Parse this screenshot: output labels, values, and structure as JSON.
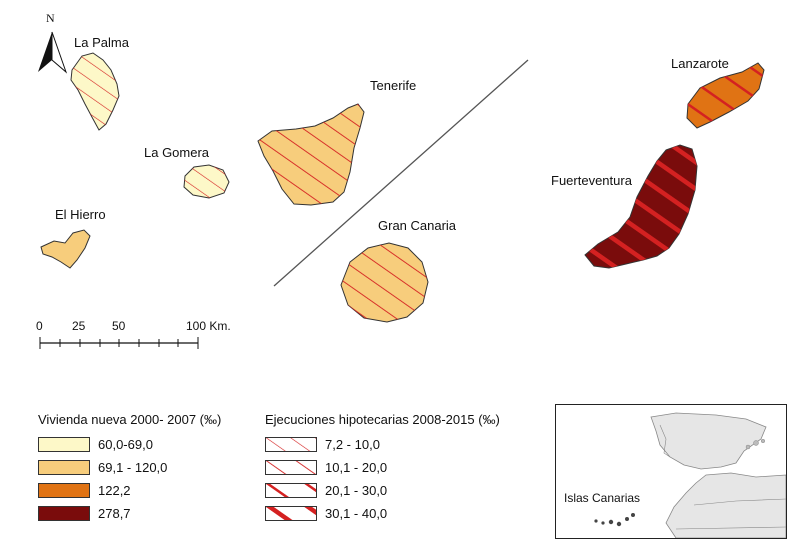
{
  "map": {
    "north_label": "N",
    "islands": {
      "la_palma": "La Palma",
      "la_gomera": "La Gomera",
      "el_hierro": "El Hierro",
      "tenerife": "Tenerife",
      "gran_canaria": "Gran Canaria",
      "lanzarote": "Lanzarote",
      "fuerteventura": "Fuerteventura"
    },
    "scale": {
      "ticks": [
        "0",
        "25",
        "50",
        "100 Km."
      ]
    }
  },
  "legend_vivienda": {
    "title": "Vivienda nueva 2000- 2007 (‰)",
    "items": [
      {
        "label": "60,0-69,0",
        "color": "#fdf8c8"
      },
      {
        "label": "69,1 - 120,0",
        "color": "#f7cd7c"
      },
      {
        "label": "122,2",
        "color": "#e07314"
      },
      {
        "label": "278,7",
        "color": "#7a0c0c"
      }
    ]
  },
  "legend_ejecuciones": {
    "title": "Ejecuciones hipotecarias 2008-2015 (‰)",
    "items": [
      {
        "label": "7,2 - 10,0",
        "hatch": "sparse"
      },
      {
        "label": "10,1 - 20,0",
        "hatch": "medium"
      },
      {
        "label": "20,1 - 30,0",
        "hatch": "dense"
      },
      {
        "label": "30,1 - 40,0",
        "hatch": "densest"
      }
    ]
  },
  "inset": {
    "label": "Islas Canarias"
  },
  "colors": {
    "hatch": "#d42121",
    "outline": "#333333"
  }
}
